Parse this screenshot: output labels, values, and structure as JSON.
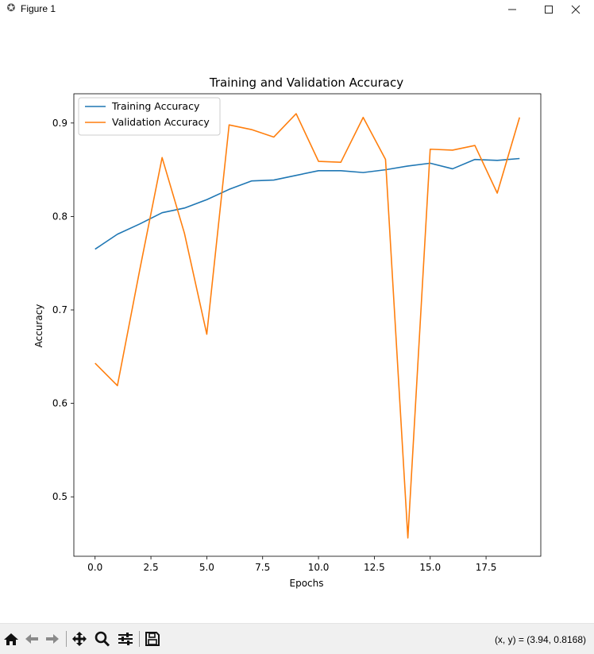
{
  "window": {
    "title": "Figure 1",
    "minimize_icon": "minimize-icon",
    "maximize_icon": "maximize-icon",
    "close_icon": "close-icon"
  },
  "toolbar": {
    "items": [
      "home-icon",
      "back-arrow-icon",
      "forward-arrow-icon",
      "pan-icon",
      "zoom-icon",
      "configure-subplots-icon",
      "save-icon"
    ],
    "coords_text": "(x, y) = (3.94, 0.8168)"
  },
  "colors": {
    "training": "#1f77b4",
    "validation": "#ff7f0e"
  },
  "chart_data": {
    "type": "line",
    "title": "Training and Validation Accuracy",
    "xlabel": "Epochs",
    "ylabel": "Accuracy",
    "xlim": [
      -0.95,
      19.95
    ],
    "ylim": [
      0.4364,
      0.9313
    ],
    "x_ticks": [
      0.0,
      2.5,
      5.0,
      7.5,
      10.0,
      12.5,
      15.0,
      17.5
    ],
    "x_tick_labels": [
      "0.0",
      "2.5",
      "5.0",
      "7.5",
      "10.0",
      "12.5",
      "15.0",
      "17.5"
    ],
    "y_ticks": [
      0.5,
      0.6,
      0.7,
      0.8,
      0.9
    ],
    "y_tick_labels": [
      "0.5",
      "0.6",
      "0.7",
      "0.8",
      "0.9"
    ],
    "grid": false,
    "legend_position": "upper-left",
    "x": [
      0,
      1,
      2,
      3,
      4,
      5,
      6,
      7,
      8,
      9,
      10,
      11,
      12,
      13,
      14,
      15,
      16,
      17,
      18,
      19
    ],
    "series": [
      {
        "name": "Training Accuracy",
        "color": "#1f77b4",
        "values": [
          0.765,
          0.781,
          0.792,
          0.804,
          0.809,
          0.818,
          0.829,
          0.838,
          0.839,
          0.844,
          0.849,
          0.849,
          0.847,
          0.85,
          0.854,
          0.857,
          0.851,
          0.861,
          0.86,
          0.862
        ]
      },
      {
        "name": "Validation Accuracy",
        "color": "#ff7f0e",
        "values": [
          0.643,
          0.619,
          0.743,
          0.863,
          0.782,
          0.674,
          0.898,
          0.893,
          0.885,
          0.91,
          0.859,
          0.858,
          0.906,
          0.861,
          0.456,
          0.872,
          0.871,
          0.876,
          0.825,
          0.906
        ]
      }
    ]
  }
}
